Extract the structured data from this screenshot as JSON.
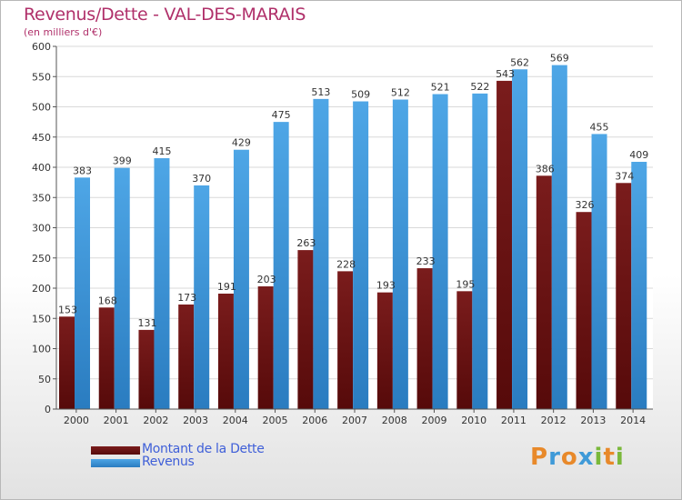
{
  "colors": {
    "dette": "#7a1c1c",
    "dette_dark": "#560a0a",
    "revenus": "#4ea6e6",
    "revenus_dark": "#2a7cc0",
    "title": "#b0306a",
    "legend_text": "#3f5fd8"
  },
  "chart_data": {
    "type": "bar",
    "title": "Revenus/Dette - VAL-DES-MARAIS",
    "subtitle": "(en milliers d'€)",
    "categories": [
      "2000",
      "2001",
      "2002",
      "2003",
      "2004",
      "2005",
      "2006",
      "2007",
      "2008",
      "2009",
      "2010",
      "2011",
      "2012",
      "2013",
      "2014"
    ],
    "series": [
      {
        "name": "Montant de la Dette",
        "values": [
          153,
          168,
          131,
          173,
          191,
          203,
          263,
          228,
          193,
          233,
          195,
          543,
          386,
          326,
          374
        ]
      },
      {
        "name": "Revenus",
        "values": [
          383,
          399,
          415,
          370,
          429,
          475,
          513,
          509,
          512,
          521,
          522,
          562,
          569,
          455,
          409
        ]
      }
    ],
    "ylim": [
      0,
      600
    ],
    "yticks": [
      0,
      50,
      100,
      150,
      200,
      250,
      300,
      350,
      400,
      450,
      500,
      550,
      600
    ],
    "grid": true,
    "legend_position": "bottom-left"
  },
  "legend": {
    "dette_label": "Montant de la Dette",
    "revenus_label": "Revenus"
  },
  "logo": {
    "letters": [
      "P",
      "r",
      "o",
      "x",
      "i",
      "t",
      "i"
    ],
    "colors": [
      "#e8892a",
      "#3f9ad8",
      "#e8892a",
      "#3f9ad8",
      "#7ab83a",
      "#e8892a",
      "#7ab83a"
    ]
  }
}
